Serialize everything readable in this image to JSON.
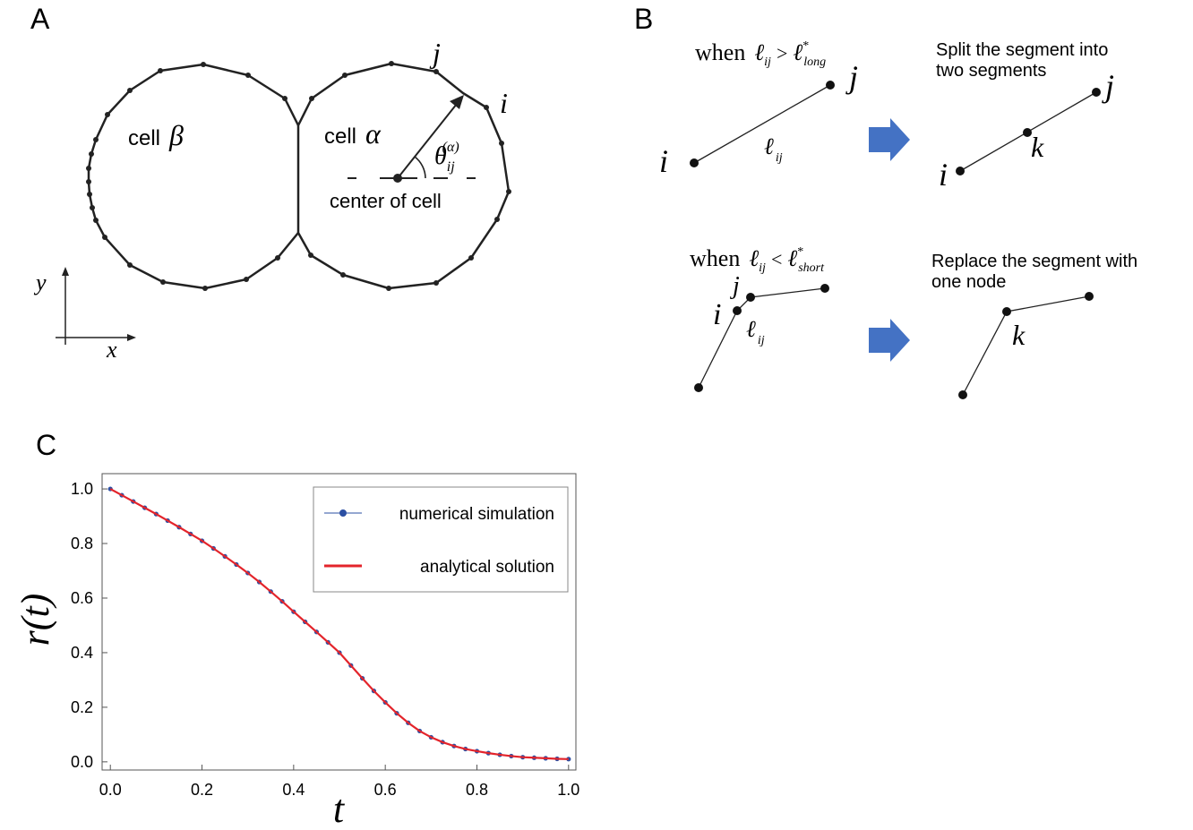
{
  "panel_a": {
    "label": "A",
    "cell_beta": "cell",
    "beta": "β",
    "cell_alpha": "cell",
    "alpha": "α",
    "theta": "θ",
    "theta_sub": "ij",
    "theta_sup": "(α)",
    "center": "center of cell",
    "j": "j",
    "i": "i",
    "y_axis": "y",
    "x_axis": "x"
  },
  "panel_b": {
    "label": "B",
    "top_rule": {
      "when": "when",
      "ell": "ℓ",
      "sub": "ij",
      "op": ">",
      "ell2": "ℓ",
      "star": "*",
      "sub2": "long"
    },
    "top_left": {
      "i": "i",
      "j": "j",
      "ell": "ℓ",
      "sub": "ij"
    },
    "top_note": [
      "Split the segment into",
      "two segments"
    ],
    "top_right": {
      "i": "i",
      "j": "j",
      "k": "k"
    },
    "bottom_rule": {
      "when": "when",
      "ell": "ℓ",
      "sub": "ij",
      "op": "<",
      "ell2": "ℓ",
      "star": "*",
      "sub2": "short"
    },
    "bottom_left": {
      "i": "i",
      "j": "j",
      "ell": "ℓ",
      "sub": "ij"
    },
    "bottom_note": [
      "Replace the segment with",
      "one node"
    ],
    "bottom_right": {
      "k": "k"
    }
  },
  "chart_data": {
    "type": "line",
    "panel_label": "C",
    "x_label": "t",
    "y_label": "r(t)",
    "x": [
      0,
      0.025,
      0.05,
      0.075,
      0.1,
      0.125,
      0.15,
      0.175,
      0.2,
      0.225,
      0.25,
      0.275,
      0.3,
      0.325,
      0.35,
      0.375,
      0.4,
      0.425,
      0.45,
      0.475,
      0.5,
      0.525,
      0.55,
      0.575,
      0.6,
      0.625,
      0.65,
      0.675,
      0.7,
      0.725,
      0.75,
      0.775,
      0.8,
      0.825,
      0.85,
      0.875,
      0.9,
      0.925,
      0.95,
      0.975,
      1
    ],
    "series": [
      {
        "name": "numerical simulation",
        "color": "#2b4fa3",
        "markers": true,
        "values": [
          1,
          0.977,
          0.954,
          0.931,
          0.908,
          0.884,
          0.86,
          0.835,
          0.81,
          0.782,
          0.753,
          0.723,
          0.692,
          0.659,
          0.624,
          0.588,
          0.55,
          0.513,
          0.476,
          0.438,
          0.4,
          0.353,
          0.306,
          0.26,
          0.218,
          0.178,
          0.143,
          0.113,
          0.09,
          0.072,
          0.058,
          0.047,
          0.039,
          0.032,
          0.026,
          0.021,
          0.017,
          0.015,
          0.013,
          0.011,
          0.01
        ]
      },
      {
        "name": "analytical solution",
        "color": "#e3242b",
        "markers": false,
        "values": [
          1,
          0.977,
          0.954,
          0.931,
          0.908,
          0.884,
          0.86,
          0.835,
          0.81,
          0.782,
          0.753,
          0.723,
          0.692,
          0.659,
          0.624,
          0.588,
          0.55,
          0.513,
          0.476,
          0.438,
          0.4,
          0.353,
          0.306,
          0.26,
          0.218,
          0.178,
          0.143,
          0.113,
          0.09,
          0.072,
          0.058,
          0.047,
          0.039,
          0.032,
          0.026,
          0.021,
          0.017,
          0.015,
          0.013,
          0.011,
          0.01
        ]
      }
    ],
    "xlim": [
      -0.018,
      1.016
    ],
    "ylim": [
      -0.03,
      1.056
    ],
    "xticks": [
      {
        "value": 0,
        "label": "0.0"
      },
      0.2,
      0.4,
      0.6,
      0.8,
      {
        "value": 1,
        "label": "1.0"
      }
    ],
    "yticks": [
      {
        "value": 0,
        "label": "0.0"
      },
      0.2,
      0.4,
      0.6,
      0.8,
      {
        "value": 1,
        "label": "1.0"
      }
    ],
    "legend": "upper right",
    "grid": false
  }
}
